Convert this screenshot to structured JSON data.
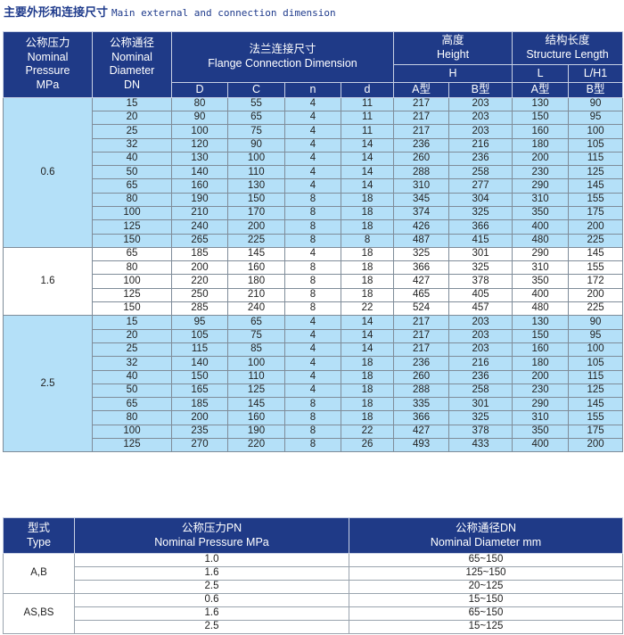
{
  "title": {
    "cn": "主要外形和连接尺寸",
    "en": "Main external and connection  dimension"
  },
  "table1": {
    "headers": {
      "pressure": [
        "公称压力",
        "Nominal",
        "Pressure",
        "MPa"
      ],
      "diameter": [
        "公称通径",
        "Nominal",
        "Diameter",
        "DN"
      ],
      "flange": [
        "法兰连接尺寸",
        "Flange Connection Dimension"
      ],
      "height": [
        "高度",
        "Height"
      ],
      "length": [
        "结构长度",
        "Structure Length"
      ],
      "H": "H",
      "L": "L",
      "LH1": "L/H1",
      "sub": [
        "D",
        "C",
        "n",
        "d",
        "A型",
        "B型",
        "A型",
        "B型"
      ]
    },
    "groups": [
      {
        "pressure": "0.6",
        "rows": [
          [
            "15",
            "80",
            "55",
            "4",
            "11",
            "217",
            "203",
            "130",
            "90"
          ],
          [
            "20",
            "90",
            "65",
            "4",
            "11",
            "217",
            "203",
            "150",
            "95"
          ],
          [
            "25",
            "100",
            "75",
            "4",
            "11",
            "217",
            "203",
            "160",
            "100"
          ],
          [
            "32",
            "120",
            "90",
            "4",
            "14",
            "236",
            "216",
            "180",
            "105"
          ],
          [
            "40",
            "130",
            "100",
            "4",
            "14",
            "260",
            "236",
            "200",
            "115"
          ],
          [
            "50",
            "140",
            "110",
            "4",
            "14",
            "288",
            "258",
            "230",
            "125"
          ],
          [
            "65",
            "160",
            "130",
            "4",
            "14",
            "310",
            "277",
            "290",
            "145"
          ],
          [
            "80",
            "190",
            "150",
            "8",
            "18",
            "345",
            "304",
            "310",
            "155"
          ],
          [
            "100",
            "210",
            "170",
            "8",
            "18",
            "374",
            "325",
            "350",
            "175"
          ],
          [
            "125",
            "240",
            "200",
            "8",
            "18",
            "426",
            "366",
            "400",
            "200"
          ],
          [
            "150",
            "265",
            "225",
            "8",
            "8",
            "487",
            "415",
            "480",
            "225"
          ]
        ]
      },
      {
        "pressure": "1.6",
        "rows": [
          [
            "65",
            "185",
            "145",
            "4",
            "18",
            "325",
            "301",
            "290",
            "145"
          ],
          [
            "80",
            "200",
            "160",
            "8",
            "18",
            "366",
            "325",
            "310",
            "155"
          ],
          [
            "100",
            "220",
            "180",
            "8",
            "18",
            "427",
            "378",
            "350",
            "172"
          ],
          [
            "125",
            "250",
            "210",
            "8",
            "18",
            "465",
            "405",
            "400",
            "200"
          ],
          [
            "150",
            "285",
            "240",
            "8",
            "22",
            "524",
            "457",
            "480",
            "225"
          ]
        ]
      },
      {
        "pressure": "2.5",
        "rows": [
          [
            "15",
            "95",
            "65",
            "4",
            "14",
            "217",
            "203",
            "130",
            "90"
          ],
          [
            "20",
            "105",
            "75",
            "4",
            "14",
            "217",
            "203",
            "150",
            "95"
          ],
          [
            "25",
            "115",
            "85",
            "4",
            "14",
            "217",
            "203",
            "160",
            "100"
          ],
          [
            "32",
            "140",
            "100",
            "4",
            "18",
            "236",
            "216",
            "180",
            "105"
          ],
          [
            "40",
            "150",
            "110",
            "4",
            "18",
            "260",
            "236",
            "200",
            "115"
          ],
          [
            "50",
            "165",
            "125",
            "4",
            "18",
            "288",
            "258",
            "230",
            "125"
          ],
          [
            "65",
            "185",
            "145",
            "8",
            "18",
            "335",
            "301",
            "290",
            "145"
          ],
          [
            "80",
            "200",
            "160",
            "8",
            "18",
            "366",
            "325",
            "310",
            "155"
          ],
          [
            "100",
            "235",
            "190",
            "8",
            "22",
            "427",
            "378",
            "350",
            "175"
          ],
          [
            "125",
            "270",
            "220",
            "8",
            "26",
            "493",
            "433",
            "400",
            "200"
          ]
        ]
      }
    ]
  },
  "table2": {
    "headers": {
      "type": [
        "型式",
        "Type"
      ],
      "pressure": [
        "公称压力PN",
        "Nominal Pressure MPa"
      ],
      "diameter": [
        "公称通径DN",
        "Nominal Diameter mm"
      ]
    },
    "groups": [
      {
        "type": "A,B",
        "rows": [
          [
            "1.0",
            "65~150"
          ],
          [
            "1.6",
            "125~150"
          ],
          [
            "2.5",
            "20~125"
          ]
        ]
      },
      {
        "type": "AS,BS",
        "rows": [
          [
            "0.6",
            "15~150"
          ],
          [
            "1.6",
            "65~150"
          ],
          [
            "2.5",
            "15~125"
          ]
        ]
      }
    ]
  },
  "colors": {
    "header": "#1f3a87",
    "row_blue": "#b4e0f8",
    "row_white": "#ffffff",
    "title": "#1f3b8c"
  }
}
